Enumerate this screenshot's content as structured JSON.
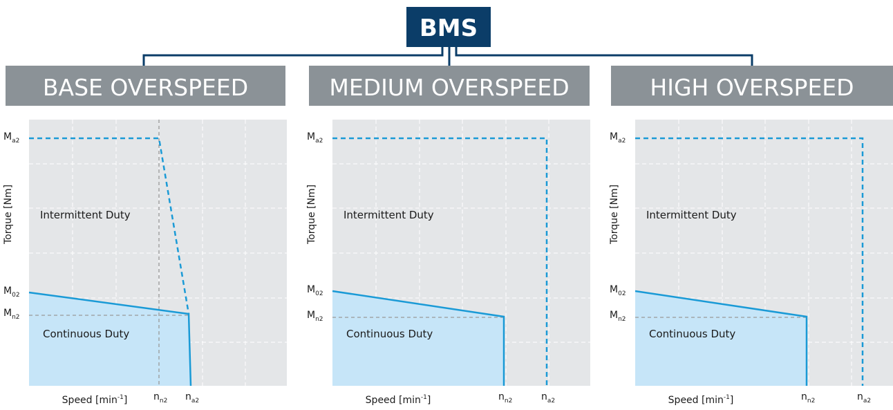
{
  "header": {
    "title": "BMS"
  },
  "panels": [
    {
      "title": "BASE OVERSPEED",
      "y_labels": [
        {
          "main": "M",
          "sub": "a2"
        },
        {
          "main": "M",
          "sub": "02"
        },
        {
          "main": "M",
          "sub": "n2"
        }
      ],
      "y_axis": "Torque [Nm]",
      "regions": [
        "Intermittent Duty",
        "Continuous Duty"
      ],
      "x_axis": {
        "main": "Speed [min",
        "sup": "-1",
        "end": "]"
      },
      "x_labels": [
        {
          "main": "n",
          "sub": "n2"
        },
        {
          "main": "n",
          "sub": "a2"
        }
      ]
    },
    {
      "title": "MEDIUM OVERSPEED",
      "y_labels": [
        {
          "main": "M",
          "sub": "a2"
        },
        {
          "main": "M",
          "sub": "02"
        },
        {
          "main": "M",
          "sub": "n2"
        }
      ],
      "y_axis": "Torque [Nm]",
      "regions": [
        "Intermittent Duty",
        "Continuous Duty"
      ],
      "x_axis": {
        "main": "Speed [min",
        "sup": "-1",
        "end": "]"
      },
      "x_labels": [
        {
          "main": "n",
          "sub": "n2"
        },
        {
          "main": "n",
          "sub": "a2"
        }
      ]
    },
    {
      "title": "HIGH OVERSPEED",
      "y_labels": [
        {
          "main": "M",
          "sub": "a2"
        },
        {
          "main": "M",
          "sub": "02"
        },
        {
          "main": "M",
          "sub": "n2"
        }
      ],
      "y_axis": "Torque [Nm]",
      "regions": [
        "Intermittent Duty",
        "Continuous Duty"
      ],
      "x_axis": {
        "main": "Speed [min",
        "sup": "-1",
        "end": "]"
      },
      "x_labels": [
        {
          "main": "n",
          "sub": "n2"
        },
        {
          "main": "n",
          "sub": "a2"
        }
      ]
    }
  ]
}
